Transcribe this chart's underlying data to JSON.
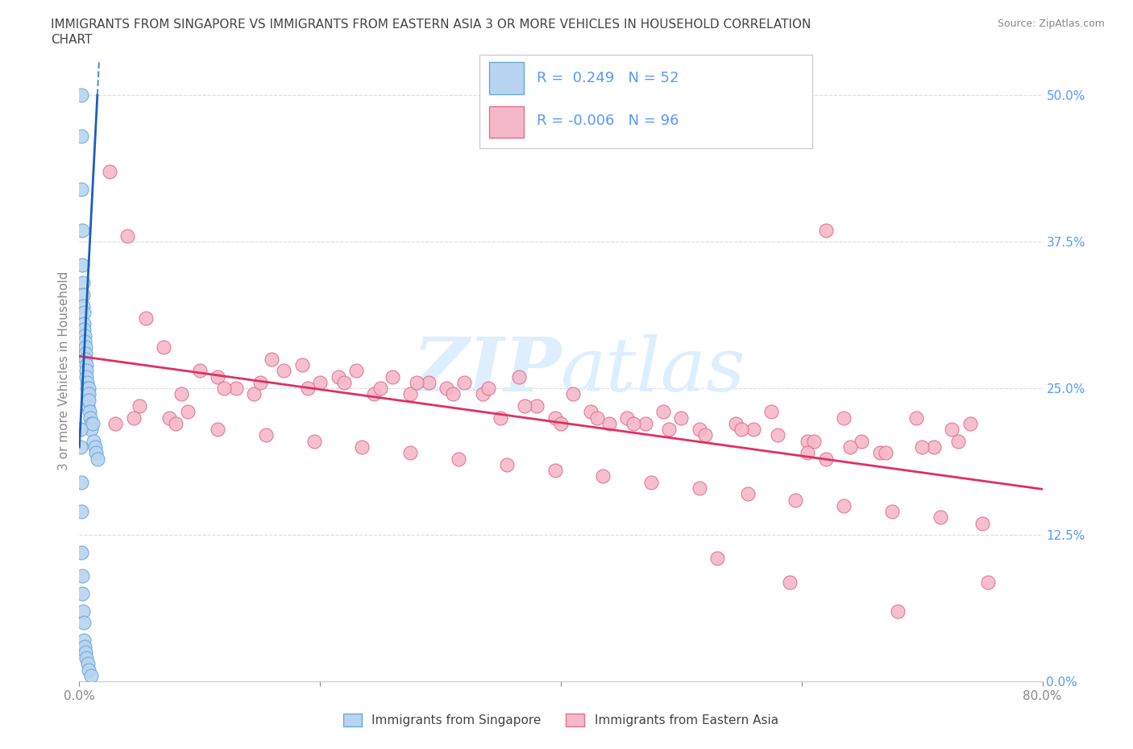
{
  "title_line1": "IMMIGRANTS FROM SINGAPORE VS IMMIGRANTS FROM EASTERN ASIA 3 OR MORE VEHICLES IN HOUSEHOLD CORRELATION",
  "title_line2": "CHART",
  "source": "Source: ZipAtlas.com",
  "ylabel": "3 or more Vehicles in Household",
  "ytick_values": [
    0.0,
    12.5,
    25.0,
    37.5,
    50.0
  ],
  "xlim": [
    0,
    80
  ],
  "ylim": [
    0,
    53
  ],
  "legend_r_blue": "0.249",
  "legend_n_blue": "52",
  "legend_r_pink": "-0.006",
  "legend_n_pink": "96",
  "blue_fill_color": "#b8d4f0",
  "pink_fill_color": "#f5b8c8",
  "blue_edge_color": "#6aaad8",
  "pink_edge_color": "#e07090",
  "trend_blue_color": "#1a5fba",
  "trend_pink_color": "#e03060",
  "watermark_color": "#ddeeff",
  "bg_color": "#ffffff",
  "tick_label_color": "#5599ff",
  "grid_color": "#dddddd",
  "blue_x": [
    0.15,
    0.18,
    0.2,
    0.22,
    0.25,
    0.28,
    0.3,
    0.32,
    0.35,
    0.38,
    0.4,
    0.42,
    0.45,
    0.48,
    0.5,
    0.52,
    0.55,
    0.58,
    0.6,
    0.62,
    0.65,
    0.68,
    0.7,
    0.72,
    0.75,
    0.78,
    0.8,
    0.85,
    0.9,
    0.95,
    1.0,
    1.1,
    1.2,
    1.3,
    1.4,
    1.5,
    0.1,
    0.12,
    0.15,
    0.18,
    0.2,
    0.22,
    0.25,
    0.3,
    0.35,
    0.4,
    0.45,
    0.5,
    0.6,
    0.7,
    0.8,
    1.0
  ],
  "blue_y": [
    50.0,
    46.5,
    42.0,
    38.5,
    35.5,
    34.0,
    33.0,
    32.0,
    31.5,
    30.5,
    30.0,
    29.5,
    29.0,
    28.5,
    28.0,
    27.5,
    27.0,
    26.5,
    26.0,
    25.5,
    25.0,
    24.5,
    24.0,
    23.5,
    25.0,
    24.5,
    24.0,
    23.0,
    22.5,
    22.0,
    21.5,
    22.0,
    20.5,
    20.0,
    19.5,
    19.0,
    21.5,
    20.0,
    17.0,
    14.5,
    11.0,
    9.0,
    7.5,
    6.0,
    5.0,
    3.5,
    3.0,
    2.5,
    2.0,
    1.5,
    1.0,
    0.5
  ],
  "pink_x": [
    2.5,
    4.0,
    5.5,
    7.0,
    8.5,
    10.0,
    11.5,
    13.0,
    14.5,
    16.0,
    17.0,
    18.5,
    20.0,
    21.5,
    23.0,
    24.5,
    26.0,
    27.5,
    29.0,
    30.5,
    32.0,
    33.5,
    35.0,
    36.5,
    38.0,
    39.5,
    41.0,
    42.5,
    44.0,
    45.5,
    47.0,
    48.5,
    50.0,
    51.5,
    53.0,
    54.5,
    56.0,
    57.5,
    59.0,
    60.5,
    62.0,
    63.5,
    65.0,
    66.5,
    68.0,
    69.5,
    71.0,
    72.5,
    74.0,
    75.5,
    3.0,
    5.0,
    7.5,
    9.0,
    12.0,
    15.0,
    19.0,
    22.0,
    25.0,
    28.0,
    31.0,
    34.0,
    37.0,
    40.0,
    43.0,
    46.0,
    49.0,
    52.0,
    55.0,
    58.0,
    61.0,
    64.0,
    67.0,
    70.0,
    73.0,
    60.5,
    62.0,
    4.5,
    8.0,
    11.5,
    15.5,
    19.5,
    23.5,
    27.5,
    31.5,
    35.5,
    39.5,
    43.5,
    47.5,
    51.5,
    55.5,
    59.5,
    63.5,
    67.5,
    71.5,
    75.0
  ],
  "pink_y": [
    43.5,
    38.0,
    31.0,
    28.5,
    24.5,
    26.5,
    26.0,
    25.0,
    24.5,
    27.5,
    26.5,
    27.0,
    25.5,
    26.0,
    26.5,
    24.5,
    26.0,
    24.5,
    25.5,
    25.0,
    25.5,
    24.5,
    22.5,
    26.0,
    23.5,
    22.5,
    24.5,
    23.0,
    22.0,
    22.5,
    22.0,
    23.0,
    22.5,
    21.5,
    10.5,
    22.0,
    21.5,
    23.0,
    8.5,
    20.5,
    38.5,
    22.5,
    20.5,
    19.5,
    6.0,
    22.5,
    20.0,
    21.5,
    22.0,
    8.5,
    22.0,
    23.5,
    22.5,
    23.0,
    25.0,
    25.5,
    25.0,
    25.5,
    25.0,
    25.5,
    24.5,
    25.0,
    23.5,
    22.0,
    22.5,
    22.0,
    21.5,
    21.0,
    21.5,
    21.0,
    20.5,
    20.0,
    19.5,
    20.0,
    20.5,
    19.5,
    19.0,
    22.5,
    22.0,
    21.5,
    21.0,
    20.5,
    20.0,
    19.5,
    19.0,
    18.5,
    18.0,
    17.5,
    17.0,
    16.5,
    16.0,
    15.5,
    15.0,
    14.5,
    14.0,
    13.5
  ]
}
